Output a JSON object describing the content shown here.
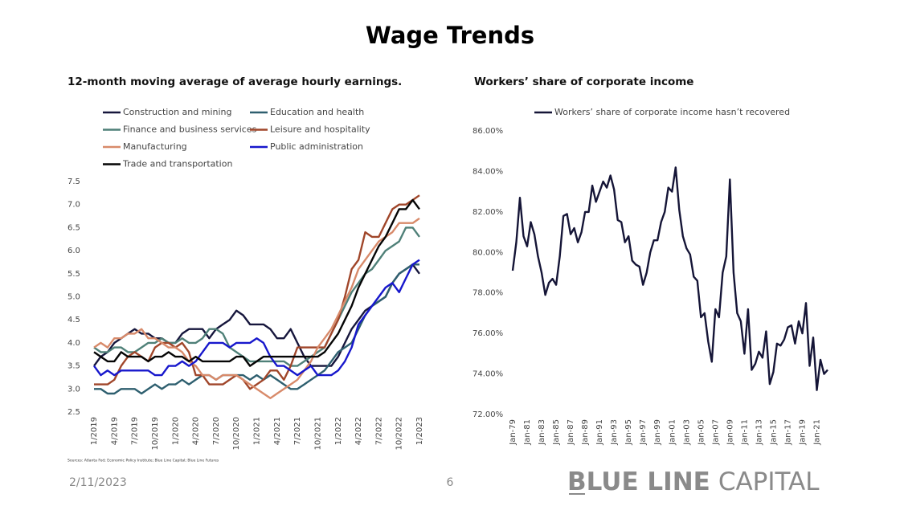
{
  "slide": {
    "title": "Wage Trends",
    "date": "2/11/2023",
    "page": "6",
    "logo_bold": "BLUE LINE",
    "logo_light": "CAPITAL",
    "source": "Sources: Atlanta Fed; Economic Policy Institute; Blue Line Capital; Blue Line Futures"
  },
  "chart_data": [
    {
      "type": "line",
      "title": "12-month moving average of average hourly earnings.",
      "grid": false,
      "legend": "top",
      "categories": [
        "1/2019",
        null,
        null,
        "4/2019",
        null,
        null,
        "7/2019",
        null,
        null,
        "10/2019",
        null,
        null,
        "1/2020",
        null,
        null,
        "4/2020",
        null,
        null,
        "7/2020",
        null,
        null,
        "10/2020",
        null,
        null,
        "1/2021",
        null,
        null,
        "4/2021",
        null,
        null,
        "7/2021",
        null,
        null,
        "10/2021",
        null,
        null,
        "1/2022",
        null,
        null,
        "4/2022",
        null,
        null,
        "7/2022",
        null,
        null,
        "10/2022",
        null,
        null,
        "1/2023"
      ],
      "ylim": [
        2.5,
        7.5
      ],
      "yticks": [
        2.5,
        {
          "value": 3,
          "label": "3.0"
        },
        3.5,
        {
          "value": 4,
          "label": "4.0"
        },
        4.5,
        {
          "value": 5,
          "label": "5.0"
        },
        5.5,
        {
          "value": 6,
          "label": "6.0"
        },
        6.5,
        {
          "value": 7,
          "label": "7.0"
        },
        7.5
      ],
      "series": [
        {
          "name": "Construction and mining",
          "color": "#16163c",
          "values": [
            3.5,
            3.7,
            3.8,
            4.0,
            4.1,
            4.2,
            4.3,
            4.2,
            4.2,
            4.1,
            4.1,
            4.0,
            4.0,
            4.2,
            4.3,
            4.3,
            4.3,
            4.1,
            4.3,
            4.4,
            4.5,
            4.7,
            4.6,
            4.4,
            4.4,
            4.4,
            4.3,
            4.1,
            4.1,
            4.3,
            4.0,
            3.7,
            3.5,
            3.5,
            3.5,
            3.5,
            3.7,
            4.0,
            4.3,
            4.5,
            4.7,
            4.8,
            4.9,
            5.0,
            5.3,
            5.5,
            5.6,
            5.7,
            5.5
          ]
        },
        {
          "name": "Education and health",
          "color": "#2e5f6f",
          "values": [
            3.0,
            3.0,
            2.9,
            2.9,
            3.0,
            3.0,
            3.0,
            2.9,
            3.0,
            3.1,
            3.0,
            3.1,
            3.1,
            3.2,
            3.1,
            3.2,
            3.3,
            3.3,
            3.2,
            3.3,
            3.3,
            3.3,
            3.3,
            3.2,
            3.3,
            3.2,
            3.3,
            3.2,
            3.1,
            3.0,
            3.0,
            3.1,
            3.2,
            3.3,
            3.4,
            3.6,
            3.8,
            3.9,
            4.0,
            4.3,
            4.6,
            4.8,
            4.9,
            5.0,
            5.3,
            5.5,
            5.6,
            5.7,
            5.7
          ]
        },
        {
          "name": "Finance and business services",
          "color": "#4f8078",
          "values": [
            3.9,
            3.8,
            3.8,
            3.9,
            3.9,
            3.8,
            3.8,
            3.9,
            4.0,
            4.0,
            4.1,
            4.0,
            4.0,
            4.1,
            4.0,
            4.0,
            4.1,
            4.3,
            4.3,
            4.2,
            3.9,
            3.8,
            3.7,
            3.6,
            3.6,
            3.6,
            3.6,
            3.6,
            3.6,
            3.5,
            3.5,
            3.6,
            3.7,
            3.8,
            3.9,
            4.2,
            4.5,
            4.8,
            5.1,
            5.3,
            5.5,
            5.6,
            5.8,
            6.0,
            6.1,
            6.2,
            6.5,
            6.5,
            6.3
          ]
        },
        {
          "name": "Leisure and hospitality",
          "color": "#a0462a",
          "values": [
            3.1,
            3.1,
            3.1,
            3.2,
            3.5,
            3.7,
            3.8,
            3.7,
            3.6,
            3.9,
            4.0,
            4.0,
            3.9,
            4.0,
            3.8,
            3.3,
            3.3,
            3.1,
            3.1,
            3.1,
            3.2,
            3.3,
            3.2,
            3.0,
            3.1,
            3.2,
            3.4,
            3.4,
            3.2,
            3.5,
            3.9,
            3.9,
            3.9,
            3.9,
            3.9,
            4.2,
            4.5,
            5.0,
            5.6,
            5.8,
            6.4,
            6.3,
            6.3,
            6.6,
            6.9,
            7.0,
            7.0,
            7.1,
            7.2
          ]
        },
        {
          "name": "Manufacturing",
          "color": "#d88a6a",
          "values": [
            3.9,
            4.0,
            3.9,
            4.1,
            4.1,
            4.2,
            4.2,
            4.3,
            4.1,
            4.1,
            4.0,
            3.9,
            3.9,
            3.8,
            3.6,
            3.5,
            3.3,
            3.3,
            3.2,
            3.3,
            3.3,
            3.3,
            3.2,
            3.1,
            3.0,
            2.9,
            2.8,
            2.9,
            3.0,
            3.1,
            3.2,
            3.4,
            3.6,
            3.9,
            4.1,
            4.3,
            4.6,
            4.9,
            5.2,
            5.6,
            5.8,
            6.0,
            6.2,
            6.3,
            6.4,
            6.6,
            6.6,
            6.6,
            6.7
          ]
        },
        {
          "name": "Public administration",
          "color": "#1717cc",
          "values": [
            3.5,
            3.3,
            3.4,
            3.3,
            3.4,
            3.4,
            3.4,
            3.4,
            3.4,
            3.3,
            3.3,
            3.5,
            3.5,
            3.6,
            3.5,
            3.6,
            3.8,
            4.0,
            4.0,
            4.0,
            3.9,
            4.0,
            4.0,
            4.0,
            4.1,
            4.0,
            3.7,
            3.5,
            3.5,
            3.4,
            3.3,
            3.4,
            3.5,
            3.3,
            3.3,
            3.3,
            3.4,
            3.6,
            3.9,
            4.4,
            4.6,
            4.8,
            5.0,
            5.2,
            5.3,
            5.1,
            5.4,
            5.7,
            5.8
          ]
        },
        {
          "name": "Trade and transportation",
          "color": "#050505",
          "values": [
            3.8,
            3.7,
            3.6,
            3.6,
            3.8,
            3.7,
            3.7,
            3.7,
            3.6,
            3.7,
            3.7,
            3.8,
            3.7,
            3.7,
            3.6,
            3.7,
            3.6,
            3.6,
            3.6,
            3.6,
            3.6,
            3.7,
            3.7,
            3.5,
            3.6,
            3.7,
            3.7,
            3.7,
            3.7,
            3.7,
            3.7,
            3.7,
            3.7,
            3.7,
            3.8,
            4.0,
            4.2,
            4.5,
            4.8,
            5.2,
            5.5,
            5.8,
            6.1,
            6.3,
            6.6,
            6.9,
            6.9,
            7.1,
            6.9
          ]
        }
      ]
    },
    {
      "type": "line",
      "title": "Workers’ share of corporate income",
      "grid": false,
      "legend": "top",
      "categories": [
        "Jan-79",
        null,
        null,
        null,
        "Jan-81",
        null,
        null,
        null,
        "Jan-83",
        null,
        null,
        null,
        "Jan-85",
        null,
        null,
        null,
        "Jan-87",
        null,
        null,
        null,
        "Jan-89",
        null,
        null,
        null,
        "Jan-91",
        null,
        null,
        null,
        "Jan-93",
        null,
        null,
        null,
        "Jan-95",
        null,
        null,
        null,
        "Jan-97",
        null,
        null,
        null,
        "Jan-99",
        null,
        null,
        null,
        "Jan-01",
        null,
        null,
        null,
        "Jan-03",
        null,
        null,
        null,
        "Jan-05",
        null,
        null,
        null,
        "Jan-07",
        null,
        null,
        null,
        "Jan-09",
        null,
        null,
        null,
        "Jan-11",
        null,
        null,
        null,
        "Jan-13",
        null,
        null,
        null,
        "Jan-15",
        null,
        null,
        null,
        "Jan-17",
        null,
        null,
        null,
        "Jan-19",
        null,
        null,
        null,
        "Jan-21",
        null,
        null,
        null
      ],
      "ylim": [
        72,
        86
      ],
      "yticks": [
        {
          "value": 72,
          "label": "72.00%"
        },
        {
          "value": 74,
          "label": "74.00%"
        },
        {
          "value": 76,
          "label": "76.00%"
        },
        {
          "value": 78,
          "label": "78.00%"
        },
        {
          "value": 80,
          "label": "80.00%"
        },
        {
          "value": 82,
          "label": "82.00%"
        },
        {
          "value": 84,
          "label": "84.00%"
        },
        {
          "value": 86,
          "label": "86.00%"
        }
      ],
      "series": [
        {
          "name": "Workers’ share of corporate income hasn’t recovered",
          "color": "#151537",
          "values": [
            79.1,
            80.5,
            82.7,
            80.8,
            80.3,
            81.5,
            80.9,
            79.8,
            79.0,
            77.9,
            78.5,
            78.7,
            78.4,
            79.8,
            81.8,
            81.9,
            80.9,
            81.2,
            80.5,
            81.0,
            82.0,
            82.0,
            83.3,
            82.5,
            83.0,
            83.5,
            83.2,
            83.8,
            83.1,
            81.6,
            81.5,
            80.5,
            80.8,
            79.6,
            79.4,
            79.3,
            78.4,
            79.0,
            80.0,
            80.6,
            80.6,
            81.5,
            82.0,
            83.2,
            83.0,
            84.2,
            82.1,
            80.8,
            80.2,
            79.9,
            78.8,
            78.6,
            76.8,
            77.0,
            75.6,
            74.6,
            77.2,
            76.8,
            79.0,
            79.8,
            83.6,
            79.0,
            77.0,
            76.6,
            75.0,
            77.2,
            74.2,
            74.5,
            75.1,
            74.8,
            76.1,
            73.5,
            74.1,
            75.5,
            75.4,
            75.7,
            76.3,
            76.4,
            75.5,
            76.6,
            76.0,
            77.5,
            74.4,
            75.8,
            73.2,
            74.7,
            74.0,
            74.2
          ]
        }
      ]
    }
  ]
}
